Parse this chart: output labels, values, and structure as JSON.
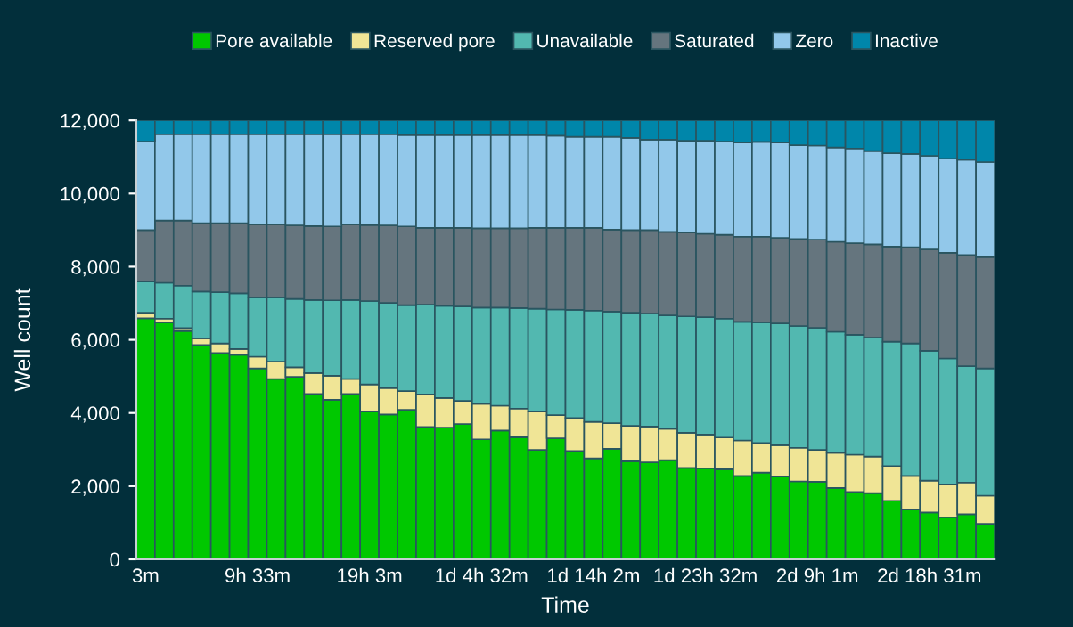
{
  "chart_data": {
    "type": "bar",
    "stacked": true,
    "xlabel": "Time",
    "ylabel": "Well count",
    "legend": "top",
    "grid": false,
    "categories": [
      "3m",
      null,
      null,
      null,
      null,
      null,
      "9h 33m",
      null,
      null,
      null,
      null,
      null,
      "19h 3m",
      null,
      null,
      null,
      null,
      null,
      "1d 4h 32m",
      null,
      null,
      null,
      null,
      null,
      "1d 14h 2m",
      null,
      null,
      null,
      null,
      null,
      "1d 23h 32m",
      null,
      null,
      null,
      null,
      null,
      "2d 9h 1m",
      null,
      null,
      null,
      null,
      null,
      "2d 18h 31m",
      null,
      null,
      null
    ],
    "ylim": [
      0,
      12000
    ],
    "yticks": [
      0,
      {
        "value": 2000,
        "label": "2,000"
      },
      {
        "value": 4000,
        "label": "4,000"
      },
      {
        "value": 6000,
        "label": "6,000"
      },
      {
        "value": 8000,
        "label": "8,000"
      },
      {
        "value": 10000,
        "label": "10,000"
      },
      {
        "value": 12000,
        "label": "12,000"
      }
    ],
    "series": [
      {
        "name": "Pore available",
        "color": "#00c800",
        "values": [
          6590,
          6480,
          6240,
          5860,
          5640,
          5590,
          5220,
          4930,
          4990,
          4520,
          4360,
          4520,
          4040,
          3960,
          4090,
          3620,
          3600,
          3700,
          3280,
          3520,
          3340,
          2990,
          3310,
          2960,
          2760,
          3020,
          2680,
          2650,
          2710,
          2500,
          2490,
          2460,
          2280,
          2370,
          2260,
          2130,
          2120,
          1950,
          1840,
          1810,
          1600,
          1360,
          1280,
          1150,
          1230,
          970
        ]
      },
      {
        "name": "Reserved pore",
        "color": "#f0e596",
        "values": [
          150,
          100,
          80,
          180,
          260,
          160,
          320,
          470,
          260,
          570,
          660,
          410,
          740,
          720,
          510,
          890,
          810,
          630,
          970,
          680,
          780,
          1050,
          630,
          900,
          1000,
          700,
          970,
          980,
          860,
          960,
          920,
          870,
          970,
          810,
          860,
          920,
          870,
          960,
          1020,
          1000,
          950,
          920,
          870,
          900,
          870,
          770
        ]
      },
      {
        "name": "Unavailable",
        "color": "#52b8b0",
        "values": [
          850,
          980,
          1160,
          1280,
          1400,
          1520,
          1620,
          1760,
          1870,
          2000,
          2060,
          2160,
          2280,
          2330,
          2350,
          2450,
          2520,
          2580,
          2630,
          2680,
          2750,
          2810,
          2890,
          2960,
          3040,
          3050,
          3090,
          3090,
          3100,
          3180,
          3210,
          3250,
          3240,
          3300,
          3330,
          3330,
          3340,
          3310,
          3280,
          3250,
          3400,
          3620,
          3550,
          3440,
          3180,
          3480
        ]
      },
      {
        "name": "Saturated",
        "color": "#65757e",
        "values": [
          1410,
          1700,
          1780,
          1870,
          1890,
          1920,
          2000,
          2000,
          2010,
          2020,
          2020,
          2070,
          2080,
          2120,
          2150,
          2100,
          2130,
          2150,
          2170,
          2170,
          2180,
          2210,
          2230,
          2240,
          2260,
          2240,
          2260,
          2280,
          2280,
          2290,
          2280,
          2290,
          2330,
          2340,
          2340,
          2380,
          2410,
          2460,
          2500,
          2550,
          2600,
          2630,
          2770,
          2890,
          3040,
          3040
        ]
      },
      {
        "name": "Zero",
        "color": "#92c8ea",
        "values": [
          2420,
          2360,
          2360,
          2430,
          2430,
          2430,
          2460,
          2460,
          2490,
          2510,
          2520,
          2460,
          2480,
          2490,
          2500,
          2540,
          2540,
          2540,
          2550,
          2550,
          2550,
          2540,
          2520,
          2490,
          2490,
          2540,
          2520,
          2470,
          2520,
          2510,
          2540,
          2550,
          2570,
          2590,
          2600,
          2560,
          2570,
          2580,
          2590,
          2550,
          2550,
          2550,
          2560,
          2570,
          2600,
          2600
        ]
      },
      {
        "name": "Inactive",
        "color": "#0086aa",
        "values": [
          580,
          380,
          380,
          380,
          380,
          380,
          380,
          380,
          380,
          380,
          380,
          380,
          380,
          380,
          400,
          400,
          400,
          400,
          400,
          400,
          400,
          400,
          420,
          450,
          450,
          450,
          480,
          530,
          530,
          560,
          560,
          580,
          610,
          590,
          610,
          680,
          690,
          740,
          770,
          840,
          900,
          920,
          970,
          1050,
          1080,
          1140
        ]
      }
    ]
  }
}
